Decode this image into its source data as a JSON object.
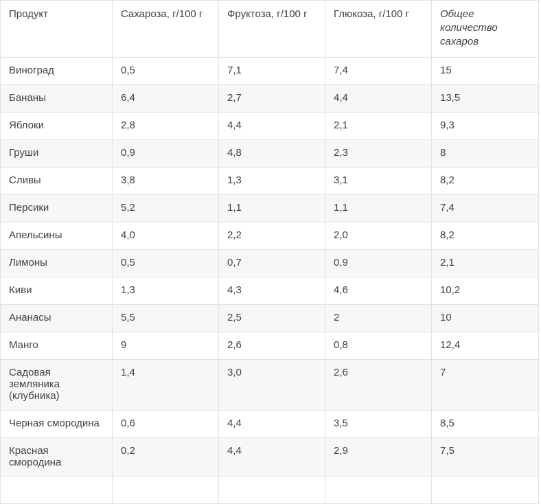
{
  "chart_data": {
    "type": "table",
    "title": "",
    "columns": [
      "Продукт",
      "Сахароза, г/100 г",
      "Фруктоза, г/100 г",
      "Глюкоза, г/100 г",
      "Общее количество сахаров"
    ],
    "italic_column_indexes": [
      4
    ],
    "rows": [
      [
        "Виноград",
        "0,5",
        "7,1",
        "7,4",
        "15"
      ],
      [
        "Бананы",
        "6,4",
        "2,7",
        "4,4",
        "13,5"
      ],
      [
        "Яблоки",
        "2,8",
        "4,4",
        "2,1",
        "9,3"
      ],
      [
        "Груши",
        "0,9",
        "4,8",
        "2,3",
        "8"
      ],
      [
        "Сливы",
        "3,8",
        "1,3",
        "3,1",
        "8,2"
      ],
      [
        "Персики",
        "5,2",
        "1,1",
        "1,1",
        "7,4"
      ],
      [
        "Апельсины",
        "4,0",
        "2,2",
        "2,0",
        "8,2"
      ],
      [
        "Лимоны",
        "0,5",
        "0,7",
        "0,9",
        "2,1"
      ],
      [
        "Киви",
        "1,3",
        "4,3",
        "4,6",
        "10,2"
      ],
      [
        "Ананасы",
        "5,5",
        "2,5",
        "2",
        "10"
      ],
      [
        "Манго",
        "9",
        "2,6",
        "0,8",
        "12,4"
      ],
      [
        "Садовая земляника (клубника)",
        "1,4",
        "3,0",
        "2,6",
        "7"
      ],
      [
        "Черная смородина",
        "0,6",
        "4,4",
        "3,5",
        "8,5"
      ],
      [
        "Красная смородина",
        "0,2",
        "4,4",
        "2,9",
        "7,5"
      ]
    ],
    "layout": {
      "striped": true,
      "stripe_color": "#f7f7f7",
      "border_color": "#e2e2e2",
      "text_color": "#424242",
      "partial_row_clipped_at_bottom": true
    }
  }
}
